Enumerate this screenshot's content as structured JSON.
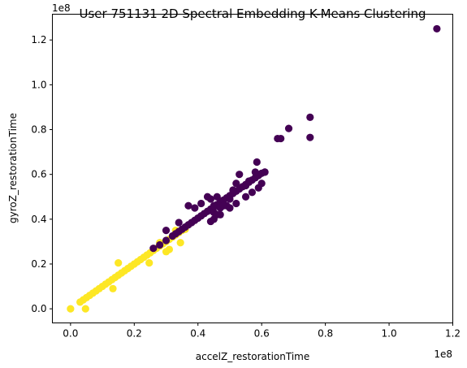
{
  "chart_data": {
    "type": "scatter",
    "title": "User 751131 2D Spectral Embedding K-Means Clustering",
    "xlabel": "accelZ_restorationTime",
    "ylabel": "gyroZ_restorationTime",
    "x_offset_label": "1e8",
    "y_offset_label": "1e8",
    "xlim": [
      -0.057,
      1.2
    ],
    "ylim": [
      -0.063,
      1.315
    ],
    "xticks": [
      0.0,
      0.2,
      0.4,
      0.6,
      0.8,
      1.0,
      1.2
    ],
    "xtick_labels": [
      "0.0",
      "0.2",
      "0.4",
      "0.6",
      "0.8",
      "1.0",
      "1.2"
    ],
    "yticks": [
      0.0,
      0.2,
      0.4,
      0.6,
      0.8,
      1.0,
      1.2
    ],
    "ytick_labels": [
      "0.0",
      "0.2",
      "0.4",
      "0.6",
      "0.8",
      "1.0",
      "1.2"
    ],
    "grid": false,
    "legend": "none",
    "colors": {
      "cluster_0": "#440154",
      "cluster_1": "#fde725"
    },
    "series": [
      {
        "color": "#fde725",
        "points": [
          [
            0.0,
            0.0
          ],
          [
            0.047,
            0.0
          ],
          [
            0.03,
            0.03
          ],
          [
            0.04,
            0.04
          ],
          [
            0.05,
            0.05
          ],
          [
            0.06,
            0.06
          ],
          [
            0.07,
            0.07
          ],
          [
            0.08,
            0.08
          ],
          [
            0.09,
            0.09
          ],
          [
            0.1,
            0.1
          ],
          [
            0.11,
            0.11
          ],
          [
            0.12,
            0.12
          ],
          [
            0.13,
            0.13
          ],
          [
            0.14,
            0.14
          ],
          [
            0.15,
            0.15
          ],
          [
            0.16,
            0.16
          ],
          [
            0.17,
            0.17
          ],
          [
            0.18,
            0.18
          ],
          [
            0.19,
            0.19
          ],
          [
            0.2,
            0.2
          ],
          [
            0.21,
            0.21
          ],
          [
            0.22,
            0.22
          ],
          [
            0.23,
            0.23
          ],
          [
            0.24,
            0.24
          ],
          [
            0.25,
            0.25
          ],
          [
            0.26,
            0.26
          ],
          [
            0.27,
            0.27
          ],
          [
            0.28,
            0.28
          ],
          [
            0.29,
            0.29
          ],
          [
            0.3,
            0.3
          ],
          [
            0.31,
            0.31
          ],
          [
            0.32,
            0.32
          ],
          [
            0.33,
            0.33
          ],
          [
            0.34,
            0.34
          ],
          [
            0.35,
            0.35
          ],
          [
            0.15,
            0.205
          ],
          [
            0.133,
            0.09
          ],
          [
            0.247,
            0.205
          ],
          [
            0.3,
            0.255
          ],
          [
            0.31,
            0.265
          ],
          [
            0.345,
            0.295
          ],
          [
            0.36,
            0.355
          ],
          [
            0.28,
            0.295
          ],
          [
            0.33,
            0.35
          ]
        ]
      },
      {
        "color": "#440154",
        "points": [
          [
            0.26,
            0.27
          ],
          [
            0.28,
            0.285
          ],
          [
            0.3,
            0.305
          ],
          [
            0.32,
            0.325
          ],
          [
            0.33,
            0.335
          ],
          [
            0.34,
            0.345
          ],
          [
            0.35,
            0.355
          ],
          [
            0.36,
            0.365
          ],
          [
            0.37,
            0.375
          ],
          [
            0.38,
            0.385
          ],
          [
            0.39,
            0.395
          ],
          [
            0.4,
            0.405
          ],
          [
            0.41,
            0.415
          ],
          [
            0.42,
            0.425
          ],
          [
            0.43,
            0.435
          ],
          [
            0.44,
            0.445
          ],
          [
            0.45,
            0.455
          ],
          [
            0.46,
            0.465
          ],
          [
            0.47,
            0.475
          ],
          [
            0.48,
            0.485
          ],
          [
            0.49,
            0.495
          ],
          [
            0.5,
            0.505
          ],
          [
            0.51,
            0.515
          ],
          [
            0.52,
            0.525
          ],
          [
            0.53,
            0.535
          ],
          [
            0.54,
            0.545
          ],
          [
            0.55,
            0.555
          ],
          [
            0.56,
            0.565
          ],
          [
            0.57,
            0.575
          ],
          [
            0.58,
            0.585
          ],
          [
            0.59,
            0.595
          ],
          [
            0.6,
            0.605
          ],
          [
            0.61,
            0.61
          ],
          [
            0.44,
            0.39
          ],
          [
            0.45,
            0.4
          ],
          [
            0.47,
            0.42
          ],
          [
            0.5,
            0.45
          ],
          [
            0.52,
            0.47
          ],
          [
            0.55,
            0.5
          ],
          [
            0.57,
            0.52
          ],
          [
            0.59,
            0.54
          ],
          [
            0.6,
            0.56
          ],
          [
            0.3,
            0.35
          ],
          [
            0.34,
            0.385
          ],
          [
            0.37,
            0.46
          ],
          [
            0.39,
            0.45
          ],
          [
            0.41,
            0.47
          ],
          [
            0.43,
            0.5
          ],
          [
            0.44,
            0.49
          ],
          [
            0.45,
            0.46
          ],
          [
            0.45,
            0.43
          ],
          [
            0.46,
            0.5
          ],
          [
            0.47,
            0.45
          ],
          [
            0.49,
            0.46
          ],
          [
            0.5,
            0.49
          ],
          [
            0.51,
            0.53
          ],
          [
            0.52,
            0.56
          ],
          [
            0.55,
            0.55
          ],
          [
            0.56,
            0.57
          ],
          [
            0.46,
            0.42
          ],
          [
            0.48,
            0.46
          ],
          [
            0.53,
            0.6
          ],
          [
            0.58,
            0.61
          ],
          [
            0.585,
            0.655
          ],
          [
            0.61,
            0.61
          ],
          [
            0.65,
            0.76
          ],
          [
            0.66,
            0.76
          ],
          [
            0.685,
            0.805
          ],
          [
            0.752,
            0.855
          ],
          [
            0.752,
            0.765
          ],
          [
            1.15,
            1.25
          ]
        ]
      }
    ]
  }
}
